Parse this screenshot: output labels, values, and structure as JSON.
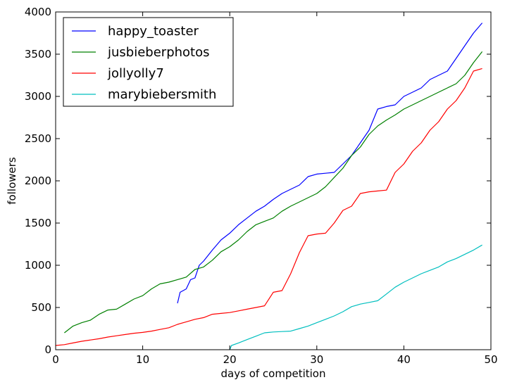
{
  "chart_data": {
    "type": "line",
    "title": "",
    "xlabel": "days of competition",
    "ylabel": "followers",
    "xlim": [
      0,
      50
    ],
    "ylim": [
      0,
      4000
    ],
    "x_ticks": [
      0,
      10,
      20,
      30,
      40,
      50
    ],
    "y_ticks": [
      0,
      500,
      1000,
      1500,
      2000,
      2500,
      3000,
      3500,
      4000
    ],
    "grid": false,
    "legend_position": "top-left",
    "series": [
      {
        "name": "happy_toaster",
        "color": "#0000ff",
        "points": [
          [
            14,
            550
          ],
          [
            14.3,
            680
          ],
          [
            15,
            720
          ],
          [
            15.5,
            830
          ],
          [
            16,
            850
          ],
          [
            16.5,
            1000
          ],
          [
            17,
            1050
          ],
          [
            18,
            1180
          ],
          [
            19,
            1300
          ],
          [
            20,
            1380
          ],
          [
            21,
            1480
          ],
          [
            22,
            1560
          ],
          [
            23,
            1640
          ],
          [
            24,
            1700
          ],
          [
            25,
            1780
          ],
          [
            26,
            1850
          ],
          [
            27,
            1900
          ],
          [
            28,
            1950
          ],
          [
            29,
            2050
          ],
          [
            30,
            2080
          ],
          [
            31,
            2090
          ],
          [
            32,
            2100
          ],
          [
            33,
            2200
          ],
          [
            34,
            2300
          ],
          [
            35,
            2450
          ],
          [
            36,
            2600
          ],
          [
            37,
            2850
          ],
          [
            38,
            2880
          ],
          [
            39,
            2900
          ],
          [
            40,
            3000
          ],
          [
            41,
            3050
          ],
          [
            42,
            3100
          ],
          [
            43,
            3200
          ],
          [
            44,
            3250
          ],
          [
            45,
            3300
          ],
          [
            46,
            3450
          ],
          [
            47,
            3600
          ],
          [
            48,
            3750
          ],
          [
            49,
            3870
          ]
        ]
      },
      {
        "name": "jusbieberphotos",
        "color": "#008000",
        "points": [
          [
            1,
            200
          ],
          [
            2,
            280
          ],
          [
            3,
            320
          ],
          [
            4,
            350
          ],
          [
            5,
            420
          ],
          [
            6,
            470
          ],
          [
            7,
            480
          ],
          [
            8,
            540
          ],
          [
            9,
            600
          ],
          [
            10,
            640
          ],
          [
            11,
            720
          ],
          [
            12,
            780
          ],
          [
            13,
            800
          ],
          [
            14,
            830
          ],
          [
            15,
            860
          ],
          [
            16,
            950
          ],
          [
            17,
            980
          ],
          [
            18,
            1060
          ],
          [
            19,
            1160
          ],
          [
            20,
            1220
          ],
          [
            21,
            1300
          ],
          [
            22,
            1400
          ],
          [
            23,
            1480
          ],
          [
            24,
            1520
          ],
          [
            25,
            1560
          ],
          [
            26,
            1640
          ],
          [
            27,
            1700
          ],
          [
            28,
            1750
          ],
          [
            29,
            1800
          ],
          [
            30,
            1850
          ],
          [
            31,
            1930
          ],
          [
            32,
            2040
          ],
          [
            33,
            2150
          ],
          [
            34,
            2300
          ],
          [
            35,
            2400
          ],
          [
            36,
            2550
          ],
          [
            37,
            2650
          ],
          [
            38,
            2720
          ],
          [
            39,
            2780
          ],
          [
            40,
            2850
          ],
          [
            41,
            2900
          ],
          [
            42,
            2950
          ],
          [
            43,
            3000
          ],
          [
            44,
            3050
          ],
          [
            45,
            3100
          ],
          [
            46,
            3150
          ],
          [
            47,
            3250
          ],
          [
            48,
            3400
          ],
          [
            49,
            3530
          ]
        ]
      },
      {
        "name": "jollyolly7",
        "color": "#ff0000",
        "points": [
          [
            0,
            50
          ],
          [
            1,
            60
          ],
          [
            2,
            80
          ],
          [
            3,
            100
          ],
          [
            4,
            115
          ],
          [
            5,
            130
          ],
          [
            6,
            150
          ],
          [
            7,
            165
          ],
          [
            8,
            180
          ],
          [
            9,
            195
          ],
          [
            10,
            205
          ],
          [
            11,
            220
          ],
          [
            12,
            240
          ],
          [
            13,
            260
          ],
          [
            14,
            300
          ],
          [
            15,
            330
          ],
          [
            16,
            360
          ],
          [
            17,
            380
          ],
          [
            18,
            420
          ],
          [
            19,
            430
          ],
          [
            20,
            440
          ],
          [
            21,
            460
          ],
          [
            22,
            480
          ],
          [
            23,
            500
          ],
          [
            24,
            520
          ],
          [
            25,
            680
          ],
          [
            26,
            700
          ],
          [
            27,
            900
          ],
          [
            28,
            1150
          ],
          [
            29,
            1350
          ],
          [
            30,
            1370
          ],
          [
            31,
            1380
          ],
          [
            32,
            1500
          ],
          [
            33,
            1650
          ],
          [
            34,
            1700
          ],
          [
            35,
            1850
          ],
          [
            36,
            1870
          ],
          [
            37,
            1880
          ],
          [
            38,
            1890
          ],
          [
            39,
            2100
          ],
          [
            40,
            2200
          ],
          [
            41,
            2350
          ],
          [
            42,
            2450
          ],
          [
            43,
            2600
          ],
          [
            44,
            2700
          ],
          [
            45,
            2850
          ],
          [
            46,
            2950
          ],
          [
            47,
            3100
          ],
          [
            48,
            3300
          ],
          [
            49,
            3330
          ]
        ]
      },
      {
        "name": "marybiebersmith",
        "color": "#00bfbf",
        "points": [
          [
            20,
            0
          ],
          [
            20.2,
            50
          ],
          [
            21,
            80
          ],
          [
            22,
            120
          ],
          [
            23,
            160
          ],
          [
            24,
            200
          ],
          [
            25,
            210
          ],
          [
            26,
            215
          ],
          [
            27,
            220
          ],
          [
            28,
            250
          ],
          [
            29,
            280
          ],
          [
            30,
            320
          ],
          [
            31,
            360
          ],
          [
            32,
            400
          ],
          [
            33,
            450
          ],
          [
            34,
            510
          ],
          [
            35,
            540
          ],
          [
            36,
            560
          ],
          [
            37,
            580
          ],
          [
            38,
            660
          ],
          [
            39,
            740
          ],
          [
            40,
            800
          ],
          [
            41,
            850
          ],
          [
            42,
            900
          ],
          [
            43,
            940
          ],
          [
            44,
            980
          ],
          [
            45,
            1040
          ],
          [
            46,
            1080
          ],
          [
            47,
            1130
          ],
          [
            48,
            1180
          ],
          [
            49,
            1240
          ]
        ]
      }
    ]
  }
}
